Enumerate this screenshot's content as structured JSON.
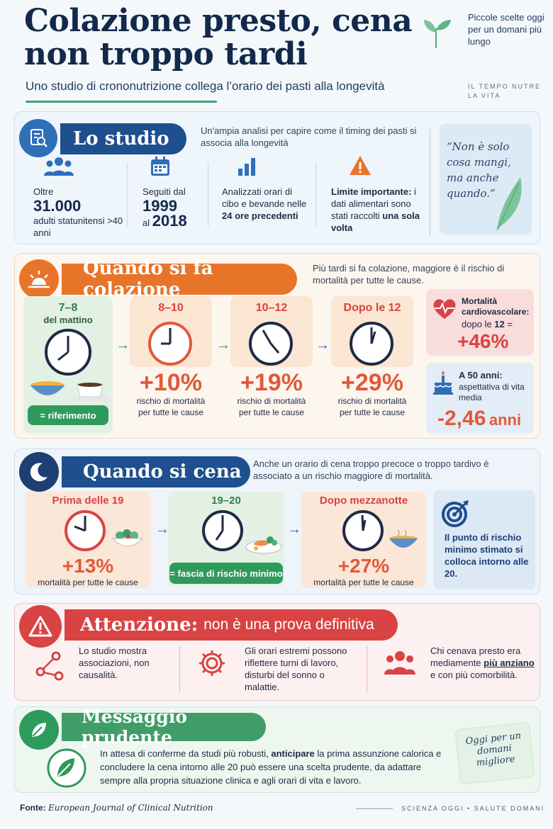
{
  "header": {
    "title": "Colazione presto, cena non troppo tardi",
    "subtitle": "Uno studio di crononutrizione collega l’orario dei pasti alla longevità",
    "tagline": "Piccole scelte oggi per un domani più lungo",
    "tagline2": "IL TEMPO NUTRE LA VITA"
  },
  "study": {
    "heading": "Lo studio",
    "intro": "Un'ampia analisi per capire come il timing dei pasti si associa alla longevità",
    "stats": [
      {
        "pre": "Oltre",
        "big": "31.000",
        "post": "adulti statunitensi >40 anni"
      },
      {
        "pre": "Seguiti dal",
        "big": "1999",
        "mid": "al",
        "big2": "2018"
      },
      {
        "pre": "Analizzati orari di cibo e bevande nelle",
        "bold": "24 ore precedenti"
      },
      {
        "bold_pre": "Limite importante:",
        "text": "i dati alimentari sono stati raccolti",
        "bold": "una sola volta"
      }
    ],
    "quote": "“Non è solo cosa mangi, ma anche quando.”"
  },
  "breakfast": {
    "heading": "Quando si fa colazione",
    "intro": "Più tardi si fa colazione, maggiore è il rischio di mortalità per tutte le cause.",
    "reference": {
      "time": "7–8",
      "sub": "del mattino",
      "pill": "= riferimento"
    },
    "cards": [
      {
        "time": "8–10",
        "pct": "+10%",
        "cap1": "rischio di mortalità",
        "cap2": "per tutte le cause"
      },
      {
        "time": "10–12",
        "pct": "+19%",
        "cap1": "rischio di mortalità",
        "cap2": "per tutte le cause"
      },
      {
        "time": "Dopo le 12",
        "pct": "+29%",
        "cap1": "rischio di mortalità",
        "cap2": "per tutte le cause"
      }
    ],
    "cardio": {
      "label": "Mortalità cardiovascolare:",
      "sub_pre": "dopo le",
      "sub_bold": "12",
      "sub_post": "=",
      "value": "+46%"
    },
    "life": {
      "label": "A 50 anni:",
      "sub": "aspettativa di vita media",
      "value": "-2,46",
      "unit": "anni"
    }
  },
  "dinner": {
    "heading": "Quando si cena",
    "intro": "Anche un orario di cena troppo precoce o troppo tardivo è associato a un rischio maggiore di mortalità.",
    "cards": [
      {
        "time": "Prima delle 19",
        "pct": "+13%",
        "cap": "mortalità per tutte le cause"
      },
      {
        "time": "19–20",
        "pill": "= fascia di rischio minimo"
      },
      {
        "time": "Dopo mezzanotte",
        "pct": "+27%",
        "cap": "mortalità per tutte le cause"
      }
    ],
    "side": "Il punto di rischio minimo stimato si colloca intorno alle 20."
  },
  "warning": {
    "heading": "Attenzione:",
    "heading_rest": "non è una prova definitiva",
    "cols": [
      "Lo studio mostra associazioni, non causalità.",
      "Gli orari estremi possono riflettere turni di lavoro, disturbi del sonno o malattie.",
      {
        "pre": "Chi cenava presto era mediamente",
        "bold": "più anziano",
        "post": "e con più comorbilità."
      }
    ]
  },
  "message": {
    "heading": "Messaggio prudente",
    "body_pre": "In attesa di conferme da studi più robusti,",
    "body_bold": "anticipare",
    "body_post": "la prima assunzione calorica e concludere la cena intorno alle 20 può essere una scelta prudente, da adattare sempre alla propria situazione clinica e agli orari di vita e lavoro.",
    "note": "Oggi per un domani migliore"
  },
  "footer": {
    "source_label": "Fonte:",
    "source": "European Journal of Clinical Nutrition",
    "right": "SCIENZA OGGI • SALUTE DOMANI"
  },
  "colors": {
    "navy": "#13294b",
    "orange": "#e8742a",
    "red": "#d94343",
    "green": "#2e9a5c",
    "blue": "#2f6fb8"
  }
}
